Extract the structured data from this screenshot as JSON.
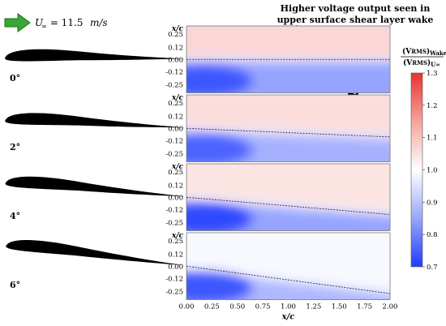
{
  "freestream": {
    "symbol": "U",
    "subscript": "∞",
    "value_text": " = 11.5 ",
    "unit": "m/s",
    "arrow_color": "#3aa635"
  },
  "annotation": {
    "line1": "Higher voltage output seen in",
    "line2": "upper surface shear layer wake"
  },
  "chart_data": {
    "type": "heatmap",
    "xlabel": "x/c",
    "ylabel": "x/c",
    "x_ticks": [
      "0.00",
      "0.25",
      "0.50",
      "0.75",
      "1.00",
      "1.25",
      "1.50",
      "1.75",
      "2.00"
    ],
    "y_ticks": [
      "0.25",
      "0.12",
      "0.00",
      "-0.12",
      "-0.25"
    ],
    "xlim": [
      0,
      2
    ],
    "ylim": [
      -0.33,
      0.33
    ],
    "angles": [
      "0°",
      "2°",
      "4°",
      "6°"
    ],
    "wake_line_drop": [
      0.0,
      0.085,
      0.17,
      0.27
    ],
    "colorbar": {
      "label_num_main": "(V",
      "label_num_sub": "RMS",
      "label_num_tail": ")",
      "label_num_sub2": "Wake",
      "label_den_main": "(V",
      "label_den_sub": "RMS",
      "label_den_tail": ")",
      "label_den_sub2": "U∞",
      "ticks": [
        "1.3",
        "1.2",
        "1.1",
        "1.0",
        "0.9",
        "0.8",
        "0.7"
      ],
      "range": [
        0.7,
        1.3
      ],
      "low_color": "#1f3cff",
      "mid_color": "#ffffff",
      "high_color": "#e8322f"
    },
    "series": [
      {
        "name": "0°",
        "upper_level": 1.06,
        "lower_level": 0.86,
        "lower_front": 0.74
      },
      {
        "name": "2°",
        "upper_level": 1.05,
        "lower_level": 0.88,
        "lower_front": 0.76
      },
      {
        "name": "4°",
        "upper_level": 1.04,
        "lower_level": 0.86,
        "lower_front": 0.72
      },
      {
        "name": "6°",
        "upper_level": 0.99,
        "lower_level": 0.89,
        "lower_front": 0.74
      }
    ]
  }
}
